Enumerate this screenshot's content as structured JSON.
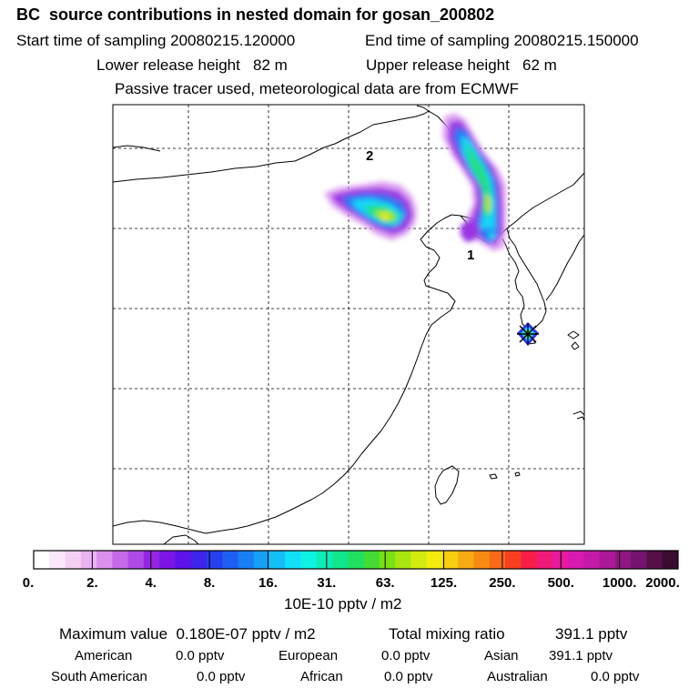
{
  "header": {
    "title": "BC  source contributions in nested domain for gosan_200802",
    "start_time": "Start time of sampling 20080215.120000",
    "end_time": "End time of sampling 20080215.150000",
    "lower_height": "Lower release height   82 m",
    "upper_height": "Upper release height   62 m",
    "tracer_note": "Passive tracer used, meteorological data are from ECMWF"
  },
  "map": {
    "region_labels": [
      "2",
      "1"
    ],
    "receptor_marker": "star-marker"
  },
  "colorbar": {
    "tick_labels": [
      "0.",
      "2.",
      "4.",
      "8.",
      "16.",
      "31.",
      "63.",
      "125.",
      "250.",
      "500.",
      "1000.",
      "2000."
    ],
    "units": "10E-10 pptv / m2",
    "colors": [
      "#ffffff",
      "#fbe9fb",
      "#f5d0f5",
      "#eab4f2",
      "#dc90ee",
      "#c76aea",
      "#ae4ae6",
      "#9426e3",
      "#7c16e6",
      "#5d13ea",
      "#3f24ec",
      "#2640ee",
      "#1e5ef2",
      "#1a7ef4",
      "#16a0f6",
      "#14bff8",
      "#12dff9",
      "#0ef2e4",
      "#0eecb6",
      "#10e68a",
      "#20e060",
      "#44dc34",
      "#7ae014",
      "#a9e60f",
      "#d2ec0f",
      "#f2ec0f",
      "#f8ce10",
      "#f8aa12",
      "#f88a14",
      "#f86a18",
      "#f84020",
      "#f81e48",
      "#f01a78",
      "#e81aa0",
      "#d81ab0",
      "#c41aa8",
      "#ac1898",
      "#901684",
      "#741470",
      "#561048",
      "#3a0c30"
    ]
  },
  "summary": {
    "max_label": "Maximum value  0.180E-07 pptv / m2",
    "total_label": "Total mixing ratio",
    "total_value": "391.1 pptv",
    "rows": [
      {
        "a_name": "American",
        "a_val": "0.0 pptv",
        "b_name": "European",
        "b_val": "0.0 pptv",
        "c_name": "Asian",
        "c_val": "391.1 pptv"
      },
      {
        "a_name": "South American",
        "a_val": "0.0 pptv",
        "b_name": "African",
        "b_val": "0.0 pptv",
        "c_name": "Australian",
        "c_val": "0.0 pptv"
      }
    ]
  }
}
